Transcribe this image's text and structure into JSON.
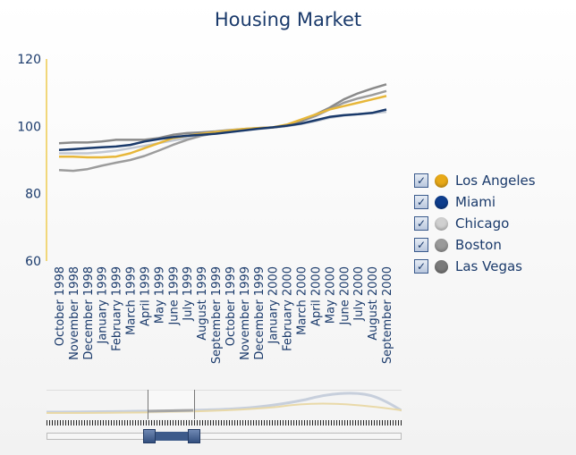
{
  "chart_data": {
    "type": "line",
    "title": "Housing Market",
    "xlabel": "",
    "ylabel": "",
    "ylim": [
      60,
      120
    ],
    "yticks": [
      60,
      80,
      100,
      120
    ],
    "grid": false,
    "legend_position": "right",
    "categories": [
      "October 1998",
      "November 1998",
      "December 1998",
      "January 1999",
      "February 1999",
      "March 1999",
      "April 1999",
      "May 1999",
      "June 1999",
      "July 1999",
      "August 1999",
      "September 1999",
      "October 1999",
      "November 1999",
      "December 1999",
      "January 2000",
      "February 2000",
      "March 2000",
      "April 2000",
      "May 2000",
      "June 2000",
      "July 2000",
      "August 2000",
      "September 2000"
    ],
    "series": [
      {
        "name": "Los Angeles",
        "color": "#e8a918",
        "line_color": "#e7b73a",
        "values": [
          91,
          91,
          90.8,
          90.8,
          91,
          92,
          93.5,
          95,
          96.5,
          97.2,
          97.8,
          98.3,
          98.8,
          99.2,
          99.5,
          99.7,
          100.5,
          102,
          103.5,
          105,
          106,
          107,
          108,
          109
        ]
      },
      {
        "name": "Miami",
        "color": "#0e3d8c",
        "line_color": "#1a3a6b",
        "values": [
          93,
          93.2,
          93.5,
          93.8,
          94,
          94.5,
          95.5,
          96.2,
          96.8,
          97.2,
          97.5,
          97.8,
          98.3,
          98.8,
          99.3,
          99.7,
          100.2,
          100.8,
          101.8,
          102.8,
          103.3,
          103.6,
          104,
          105
        ]
      },
      {
        "name": "Chicago",
        "color": "#d0d0d0",
        "line_color": "#c2c8d2",
        "values": [
          92,
          92,
          92,
          92.3,
          92.8,
          93.5,
          94.2,
          95,
          95.8,
          96.5,
          97.3,
          97.9,
          98.4,
          98.8,
          99.2,
          99.6,
          100,
          100.7,
          101.5,
          102.5,
          103.2,
          103.6,
          103.9,
          104.3
        ]
      },
      {
        "name": "Boston",
        "color": "#9a9a9a",
        "line_color": "#9c9c9c",
        "values": [
          87,
          86.8,
          87.3,
          88.3,
          89.2,
          90,
          91.2,
          92.8,
          94.5,
          96,
          97.2,
          98,
          98.6,
          99,
          99.4,
          99.7,
          100.2,
          101.5,
          103,
          105,
          107,
          108.3,
          109.3,
          110.5
        ]
      },
      {
        "name": "Las Vegas",
        "color": "#7a7a7a",
        "line_color": "#8a8a8a",
        "values": [
          95,
          95.2,
          95.2,
          95.5,
          96,
          96,
          96,
          96.5,
          97.5,
          98,
          98.2,
          98.5,
          98.9,
          99.2,
          99.5,
          99.7,
          100.2,
          101.5,
          103.5,
          105.5,
          108,
          109.8,
          111.2,
          112.5
        ]
      }
    ]
  },
  "legend": {
    "items": [
      {
        "label": "Los Angeles",
        "color": "#e8a918",
        "checked": true
      },
      {
        "label": "Miami",
        "color": "#0e3d8c",
        "checked": true
      },
      {
        "label": "Chicago",
        "color": "#d0d0d0",
        "checked": true
      },
      {
        "label": "Boston",
        "color": "#9a9a9a",
        "checked": true
      },
      {
        "label": "Las Vegas",
        "color": "#7a7a7a",
        "checked": true
      }
    ],
    "check_glyph": "✓"
  },
  "navigator": {
    "selection_range": [
      "March 1999",
      "August 1999"
    ]
  }
}
